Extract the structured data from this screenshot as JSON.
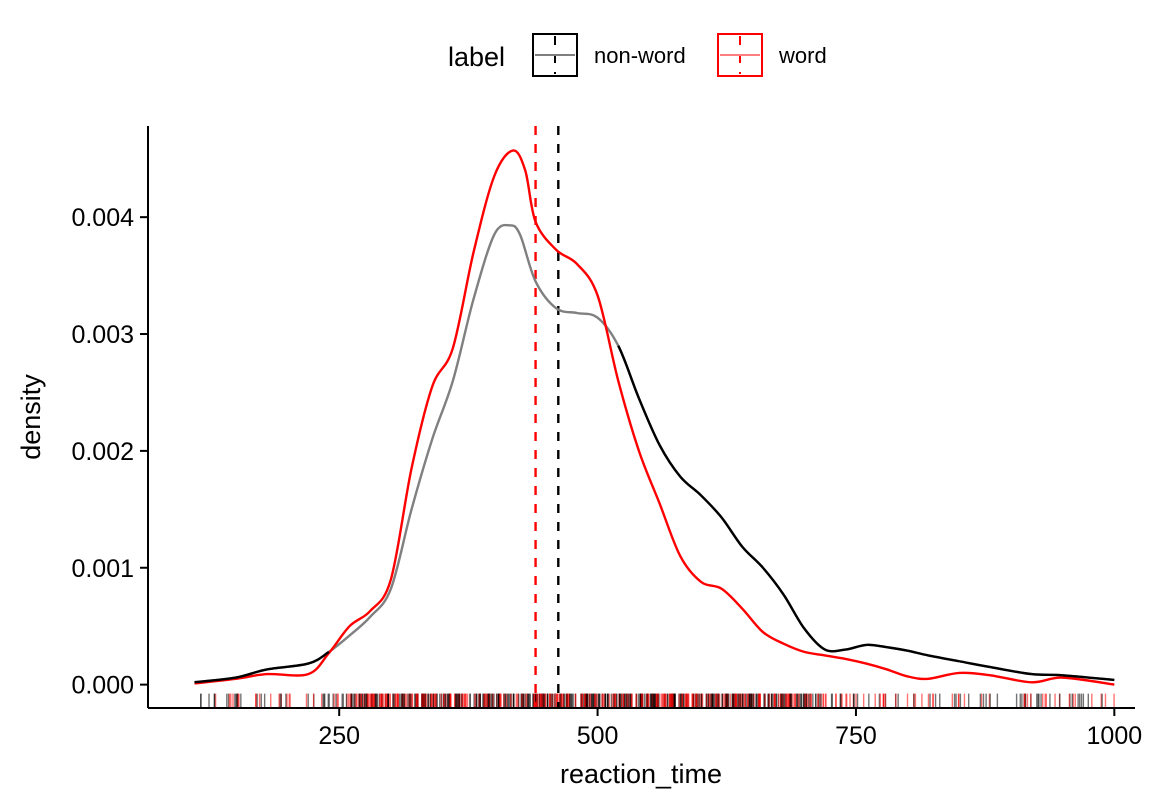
{
  "legend": {
    "title": "label",
    "entries": [
      {
        "key": "non-word",
        "label": "non-word",
        "color": "#000000"
      },
      {
        "key": "word",
        "label": "word",
        "color": "#ff0000"
      }
    ]
  },
  "colors": {
    "nonword_line": "#000000",
    "nonword_faded": "#808080",
    "word_line": "#ff0000",
    "axis": "#000000"
  },
  "chart_data": {
    "type": "density",
    "title": "",
    "xlabel": "reaction_time",
    "ylabel": "density",
    "xlim": [
      65,
      1020
    ],
    "ylim": [
      -0.0002,
      0.00478
    ],
    "x_ticks": [
      250,
      500,
      750,
      1000
    ],
    "x_tick_labels": [
      "250",
      "500",
      "750",
      "1000"
    ],
    "y_ticks": [
      0.0,
      0.001,
      0.002,
      0.003,
      0.004
    ],
    "y_tick_labels": [
      "0.000",
      "0.001",
      "0.002",
      "0.003",
      "0.004"
    ],
    "grid": false,
    "legend_position": "top",
    "series": [
      {
        "name": "non-word",
        "color": "#000000",
        "mean": 462,
        "x": [
          110,
          150,
          180,
          220,
          240,
          260,
          280,
          300,
          320,
          340,
          360,
          380,
          400,
          415,
          425,
          440,
          460,
          480,
          500,
          520,
          540,
          560,
          580,
          600,
          620,
          640,
          660,
          680,
          700,
          720,
          740,
          760,
          780,
          800,
          820,
          850,
          880,
          920,
          950,
          1000
        ],
        "y": [
          2e-05,
          6e-05,
          0.00013,
          0.00018,
          0.00028,
          0.00042,
          0.00058,
          0.00082,
          0.0015,
          0.0021,
          0.0026,
          0.0033,
          0.00385,
          0.00393,
          0.00385,
          0.00345,
          0.00322,
          0.00318,
          0.00314,
          0.0029,
          0.00245,
          0.00205,
          0.00178,
          0.00162,
          0.00143,
          0.00118,
          0.001,
          0.00077,
          0.00048,
          0.0003,
          0.0003,
          0.00034,
          0.00032,
          0.00029,
          0.00025,
          0.0002,
          0.00015,
          9e-05,
          8e-05,
          4e-05
        ]
      },
      {
        "name": "word",
        "color": "#ff0000",
        "mean": 440,
        "x": [
          110,
          150,
          180,
          220,
          240,
          260,
          280,
          300,
          320,
          340,
          360,
          380,
          400,
          418,
          430,
          440,
          460,
          480,
          500,
          520,
          540,
          560,
          580,
          600,
          620,
          640,
          660,
          680,
          700,
          720,
          740,
          760,
          780,
          800,
          820,
          850,
          880,
          920,
          950,
          1000
        ],
        "y": [
          1e-05,
          5e-05,
          9e-05,
          9e-05,
          0.00027,
          0.0005,
          0.00063,
          0.0009,
          0.00185,
          0.00255,
          0.00288,
          0.0037,
          0.00435,
          0.00457,
          0.0044,
          0.00396,
          0.00372,
          0.0036,
          0.00333,
          0.0026,
          0.002,
          0.00155,
          0.0011,
          0.00088,
          0.00082,
          0.00065,
          0.00045,
          0.00035,
          0.00028,
          0.00025,
          0.00022,
          0.00018,
          0.00013,
          7e-05,
          5e-05,
          0.0001,
          8e-05,
          2e-05,
          6e-05,
          0.0
        ]
      }
    ]
  }
}
